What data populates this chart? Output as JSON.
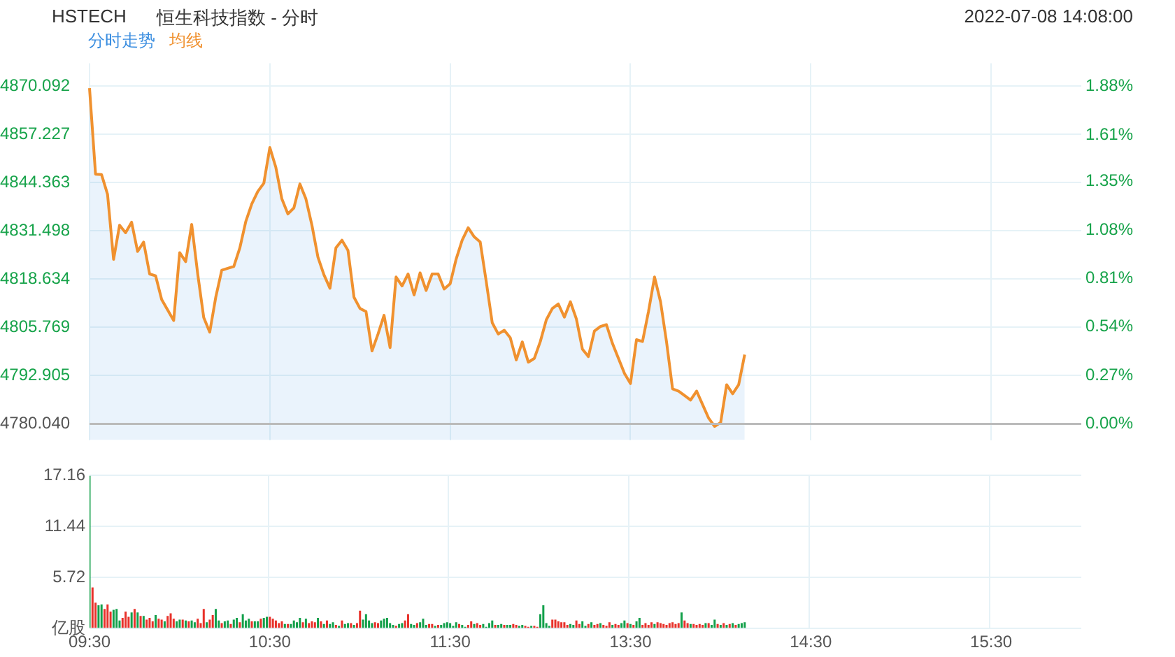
{
  "chart_data": [
    {
      "type": "line",
      "title": "恒生科技指数 - 分时",
      "subtitle": "HSTECH",
      "annotations": [
        "2022-07-08 14:08:00"
      ],
      "categories": [
        null,
        null,
        null,
        null,
        null,
        null,
        null,
        null,
        null,
        null,
        null,
        null,
        null,
        null,
        null,
        null,
        null,
        null,
        null,
        null,
        null,
        null,
        null,
        null,
        null,
        null,
        null,
        null,
        null,
        null,
        null,
        null,
        null,
        null,
        null,
        null,
        null,
        null,
        null,
        null,
        null,
        null,
        null,
        null,
        null,
        null,
        null,
        null,
        null,
        null,
        null,
        null,
        null,
        null,
        null,
        null,
        null,
        null,
        null,
        null,
        null,
        null,
        null,
        null,
        null,
        null,
        null,
        null,
        null,
        null,
        null,
        null,
        null,
        null,
        null,
        null,
        null,
        null,
        null,
        null,
        null,
        null,
        null,
        null,
        null,
        null,
        null,
        null,
        null,
        null,
        null,
        null,
        null,
        null,
        null,
        null,
        null,
        null,
        null,
        null,
        null,
        null,
        null,
        null,
        null,
        null,
        null,
        null,
        null,
        null,
        null,
        null,
        null,
        null,
        null,
        null,
        null,
        null,
        null,
        null,
        null,
        null,
        null,
        null,
        null,
        null,
        null,
        null,
        null,
        null,
        null,
        null,
        null,
        null,
        null,
        null,
        null,
        null,
        null,
        null,
        null,
        null,
        null,
        null,
        null,
        null,
        null,
        null,
        null,
        null,
        null,
        null,
        null,
        null,
        null,
        null,
        null,
        null,
        null,
        null,
        null,
        null,
        null,
        null,
        null,
        null
      ],
      "series": [
        {
          "name": "分时走势",
          "type": "area",
          "color": "#3d8fe0",
          "values": [
            4869.5,
            4846.6,
            4846.5,
            4841.2,
            4823.9,
            4833.0,
            4831.0,
            4833.8,
            4826.0,
            4828.5,
            4820.0,
            4819.5,
            4813.2,
            4810.4,
            4807.6,
            4825.7,
            4823.3,
            4833.2,
            4820.0,
            4808.4,
            4804.5,
            4813.8,
            4821.0,
            4821.5,
            4822.0,
            4826.9,
            4834.0,
            4838.7,
            4842.0,
            4844.2,
            4853.7,
            4848.4,
            4840.0,
            4836.0,
            4837.6,
            4844.0,
            4840.0,
            4833.0,
            4824.5,
            4819.8,
            4816.2,
            4827.0,
            4829.0,
            4826.3,
            4813.8,
            4810.8,
            4810.0,
            4799.5,
            4804.0,
            4809.0,
            4800.4,
            4819.2,
            4816.8,
            4820.0,
            4814.4,
            4820.3,
            4815.6,
            4820.0,
            4820.0,
            4816.0,
            4817.4,
            4824.0,
            4829.0,
            4832.3,
            4829.9,
            4828.5,
            4818.0,
            4807.0,
            4804.0,
            4805.0,
            4803.0,
            4797.1,
            4801.9,
            4796.5,
            4797.5,
            4802.0,
            4807.8,
            4810.8,
            4812.0,
            4808.5,
            4812.6,
            4808.0,
            4800.0,
            4798.0,
            4804.8,
            4806.0,
            4806.5,
            4801.5,
            4797.5,
            4793.5,
            4790.8,
            4802.5,
            4802.0,
            4810.0,
            4819.2,
            4812.6,
            4801.9,
            4789.4,
            4788.8,
            4787.6,
            4786.4,
            4788.8,
            4785.2,
            4781.6,
            4779.4,
            4780.4,
            4790.5,
            4788.1,
            4790.5,
            4798.5,
            null,
            null,
            null,
            null,
            null,
            null,
            null,
            null,
            null,
            null,
            null,
            null,
            null,
            null,
            null,
            null,
            null,
            null,
            null,
            null,
            null,
            null,
            null,
            null,
            null,
            null,
            null,
            null,
            null,
            null,
            null,
            null,
            null,
            null,
            null,
            null,
            null,
            null,
            null,
            null,
            null,
            null,
            null,
            null,
            null,
            null,
            null,
            null,
            null,
            null,
            null,
            null,
            null,
            null,
            null,
            null
          ]
        },
        {
          "name": "均线",
          "type": "line",
          "color": "#f0912f",
          "values": [
            4869.5,
            4846.6,
            4846.5,
            4841.2,
            4823.9,
            4833.0,
            4831.0,
            4833.8,
            4826.0,
            4828.5,
            4820.0,
            4819.5,
            4813.2,
            4810.4,
            4807.6,
            4825.7,
            4823.3,
            4833.2,
            4820.0,
            4808.4,
            4804.5,
            4813.8,
            4821.0,
            4821.5,
            4822.0,
            4826.9,
            4834.0,
            4838.7,
            4842.0,
            4844.2,
            4853.7,
            4848.4,
            4840.0,
            4836.0,
            4837.6,
            4844.0,
            4840.0,
            4833.0,
            4824.5,
            4819.8,
            4816.2,
            4827.0,
            4829.0,
            4826.3,
            4813.8,
            4810.8,
            4810.0,
            4799.5,
            4804.0,
            4809.0,
            4800.4,
            4819.2,
            4816.8,
            4820.0,
            4814.4,
            4820.3,
            4815.6,
            4820.0,
            4820.0,
            4816.0,
            4817.4,
            4824.0,
            4829.0,
            4832.3,
            4829.9,
            4828.5,
            4818.0,
            4807.0,
            4804.0,
            4805.0,
            4803.0,
            4797.1,
            4801.9,
            4796.5,
            4797.5,
            4802.0,
            4807.8,
            4810.8,
            4812.0,
            4808.5,
            4812.6,
            4808.0,
            4800.0,
            4798.0,
            4804.8,
            4806.0,
            4806.5,
            4801.5,
            4797.5,
            4793.5,
            4790.8,
            4802.5,
            4802.0,
            4810.0,
            4819.2,
            4812.6,
            4801.9,
            4789.4,
            4788.8,
            4787.6,
            4786.4,
            4788.8,
            4785.2,
            4781.6,
            4779.4,
            4780.4,
            4790.5,
            4788.1,
            4790.5,
            4798.5,
            null,
            null,
            null,
            null,
            null,
            null,
            null,
            null,
            null,
            null,
            null,
            null,
            null,
            null,
            null,
            null,
            null,
            null,
            null,
            null,
            null,
            null,
            null,
            null,
            null,
            null,
            null,
            null,
            null,
            null,
            null,
            null,
            null,
            null,
            null,
            null,
            null,
            null,
            null,
            null,
            null,
            null,
            null,
            null,
            null,
            null,
            null,
            null,
            null,
            null,
            null,
            null,
            null,
            null,
            null,
            null
          ]
        }
      ],
      "ylim": [
        4775.75,
        4876.17
      ],
      "yticks": [
        {
          "value": 4780.04,
          "label": "4780.040"
        },
        {
          "value": 4792.905,
          "label": "4792.905"
        },
        {
          "value": 4805.769,
          "label": "4805.769"
        },
        {
          "value": 4818.634,
          "label": "4818.634"
        },
        {
          "value": 4831.498,
          "label": "4831.498"
        },
        {
          "value": 4844.363,
          "label": "4844.363"
        },
        {
          "value": 4857.227,
          "label": "4857.227"
        },
        {
          "value": 4870.092,
          "label": "4870.092"
        }
      ],
      "y2lim": [
        -0.09,
        2.01
      ],
      "y2ticks": [
        {
          "value": 0,
          "label": "0.00%"
        },
        {
          "value": 0.27,
          "label": "0.27%"
        },
        {
          "value": 0.54,
          "label": "0.54%"
        },
        {
          "value": 0.81,
          "label": "0.81%"
        },
        {
          "value": 1.08,
          "label": "1.08%"
        },
        {
          "value": 1.35,
          "label": "1.35%"
        },
        {
          "value": 1.61,
          "label": "1.61%"
        },
        {
          "value": 1.88,
          "label": "1.88%"
        }
      ],
      "ref_lines": [
        {
          "axis": "y",
          "value": 4780.04,
          "color": "#bbbbbb"
        }
      ],
      "grid": true,
      "legend": "top left",
      "tick_labels": "y"
    },
    {
      "type": "bar",
      "categories": [
        "09:30",
        null,
        null,
        null,
        null,
        null,
        null,
        null,
        null,
        null,
        null,
        null,
        null,
        null,
        null,
        null,
        null,
        null,
        null,
        null,
        null,
        null,
        null,
        null,
        null,
        null,
        null,
        null,
        null,
        null,
        null,
        null,
        null,
        null,
        null,
        null,
        null,
        null,
        null,
        null,
        null,
        null,
        null,
        null,
        null,
        null,
        null,
        null,
        null,
        null,
        null,
        null,
        null,
        null,
        null,
        null,
        null,
        null,
        null,
        null,
        "10:30",
        null,
        null,
        null,
        null,
        null,
        null,
        null,
        null,
        null,
        null,
        null,
        null,
        null,
        null,
        null,
        null,
        null,
        null,
        null,
        null,
        null,
        null,
        null,
        null,
        null,
        null,
        null,
        null,
        null,
        null,
        null,
        null,
        null,
        null,
        null,
        null,
        null,
        null,
        null,
        null,
        null,
        null,
        null,
        null,
        null,
        null,
        null,
        null,
        null,
        null,
        null,
        null,
        null,
        null,
        null,
        null,
        null,
        null,
        null,
        "11:30",
        null,
        null,
        null,
        null,
        null,
        null,
        null,
        null,
        null,
        null,
        null,
        null,
        null,
        null,
        null,
        null,
        null,
        null,
        null,
        null,
        null,
        null,
        null,
        null,
        null,
        null,
        null,
        null,
        null,
        null,
        null,
        null,
        null,
        null,
        null,
        null,
        null,
        null,
        null,
        null,
        null,
        null,
        null,
        null,
        null,
        null,
        null,
        null,
        null,
        null,
        null,
        null,
        null,
        null,
        null,
        null,
        null,
        null,
        null,
        "13:30",
        null,
        null,
        null,
        null,
        null,
        null,
        null,
        null,
        null,
        null,
        null,
        null,
        null,
        null,
        null,
        null,
        null,
        null,
        null,
        null,
        null,
        null,
        null,
        null,
        null,
        null,
        null,
        null,
        null,
        null,
        null,
        null,
        null,
        null,
        null,
        null,
        null,
        null,
        null,
        null,
        null,
        null,
        null,
        null,
        null,
        null,
        null,
        null,
        null,
        null,
        null,
        null,
        null,
        null,
        null,
        null,
        null,
        null,
        null,
        "14:30",
        null,
        null,
        null,
        null,
        null,
        null,
        null,
        null,
        null,
        null,
        null,
        null,
        null,
        null,
        null,
        null,
        null,
        null,
        null,
        null,
        null,
        null,
        null,
        null,
        null,
        null,
        null,
        null,
        null,
        null,
        null,
        null,
        null,
        null,
        null,
        null,
        null,
        null,
        null,
        null,
        null,
        null,
        null,
        null,
        null,
        null,
        null,
        null,
        null,
        null,
        null,
        null,
        null,
        null,
        null,
        null,
        null,
        null,
        null,
        "15:30",
        null,
        null,
        null,
        null,
        null,
        null,
        null,
        null,
        null,
        null,
        null,
        null,
        null,
        null,
        null,
        null,
        null,
        null,
        null,
        null,
        null,
        null,
        null,
        null,
        null,
        null,
        null,
        null,
        null,
        null
      ],
      "values": [
        17.16,
        4.6,
        2.9,
        2.6,
        2.7,
        2.2,
        2.7,
        1.9,
        2.1,
        2.2,
        0.9,
        1.2,
        1.9,
        1.3,
        1.8,
        2.2,
        1.8,
        1.4,
        1.4,
        1.0,
        1.2,
        0.8,
        1.5,
        1.1,
        1.0,
        0.8,
        1.4,
        1.7,
        1.1,
        0.8,
        1.0,
        1.0,
        0.9,
        0.8,
        0.9,
        0.7,
        1.1,
        0.6,
        2.2,
        0.7,
        1.0,
        1.5,
        2.2,
        0.9,
        0.6,
        0.8,
        0.9,
        0.5,
        1.0,
        1.2,
        0.7,
        1.6,
        0.9,
        1.1,
        0.8,
        0.8,
        0.8,
        1.1,
        1.2,
        1.3,
        1.3,
        1.1,
        0.9,
        0.6,
        0.8,
        0.5,
        0.5,
        0.5,
        0.9,
        0.7,
        1.2,
        0.7,
        1.1,
        0.6,
        0.8,
        0.7,
        1.2,
        0.8,
        0.5,
        0.9,
        0.5,
        0.7,
        0.4,
        0.3,
        0.9,
        0.5,
        0.6,
        0.6,
        0.4,
        0.6,
        2.0,
        1.0,
        1.6,
        0.9,
        0.6,
        0.7,
        0.6,
        0.9,
        1.1,
        1.2,
        0.6,
        0.4,
        0.3,
        0.5,
        0.6,
        0.9,
        1.6,
        0.5,
        0.4,
        0.6,
        0.7,
        1.1,
        0.4,
        0.5,
        0.5,
        0.3,
        0.4,
        0.4,
        0.6,
        0.7,
        0.6,
        0.3,
        0.7,
        0.5,
        0.4,
        0.2,
        0.4,
        0.8,
        0.5,
        0.6,
        0.4,
        0.5,
        0.2,
        0.6,
        0.9,
        0.4,
        0.4,
        0.5,
        0.4,
        0.4,
        0.4,
        0.5,
        0.4,
        0.3,
        0.4,
        0.3,
        0.2,
        0.3,
        0.3,
        0.2,
        1.6,
        2.6,
        0.6,
        0.3,
        1.0,
        1.0,
        0.8,
        0.7,
        0.7,
        0.4,
        0.5,
        0.4,
        0.9,
        0.5,
        0.8,
        0.3,
        0.5,
        0.7,
        0.4,
        0.5,
        0.6,
        0.4,
        0.3,
        0.7,
        0.4,
        0.5,
        0.4,
        0.6,
        0.9,
        0.6,
        0.5,
        0.4,
        0.8,
        1.2,
        0.4,
        0.6,
        0.4,
        0.7,
        0.5,
        0.7,
        0.6,
        0.5,
        0.4,
        0.6,
        0.7,
        0.5,
        0.6,
        1.8,
        0.9,
        0.6,
        0.5,
        0.5,
        0.4,
        0.5,
        0.4,
        0.6,
        0.6,
        0.4,
        1.0,
        0.5,
        0.4,
        0.6,
        0.4,
        0.5,
        0.6,
        0.4,
        0.5,
        0.6,
        0.7,
        null,
        null,
        null,
        null,
        null,
        null,
        null,
        null,
        null,
        null,
        null,
        null,
        null,
        null,
        null,
        null,
        null,
        null,
        null,
        null,
        null,
        null,
        null,
        null,
        null,
        null,
        null,
        null,
        null,
        null,
        null,
        null,
        null,
        null,
        null,
        null,
        null,
        null,
        null,
        null,
        null,
        null,
        null,
        null,
        null,
        null,
        null,
        null,
        null,
        null,
        null,
        null,
        null,
        null,
        null,
        null,
        null,
        null,
        null,
        null,
        null,
        null,
        null,
        null,
        null,
        null,
        null,
        null,
        null,
        null,
        null,
        null,
        null,
        null,
        null,
        null,
        null,
        null,
        null,
        null,
        null,
        null,
        null,
        null,
        null,
        null,
        null,
        null,
        null,
        null,
        null,
        null,
        null,
        null,
        null,
        null,
        null,
        null,
        null,
        null,
        null,
        null,
        null,
        null,
        null,
        null,
        null,
        null,
        null,
        null,
        null,
        null
      ],
      "colors": [
        "#13a04b",
        "#e8312a",
        "#e8312a",
        "#13a04b",
        "#13a04b",
        "#e8312a",
        "#e8312a",
        "#e8312a",
        "#13a04b",
        "#13a04b",
        "#13a04b",
        "#e8312a",
        "#e8312a",
        "#e8312a",
        "#13a04b",
        "#e8312a",
        "#13a04b",
        "#e8312a",
        "#13a04b",
        "#e8312a",
        "#e8312a",
        "#e8312a",
        "#13a04b",
        "#e8312a",
        "#e8312a",
        "#13a04b",
        "#e8312a",
        "#e8312a",
        "#e8312a",
        "#13a04b",
        "#13a04b",
        "#e8312a",
        "#13a04b",
        "#e8312a",
        "#13a04b",
        "#13a04b",
        "#e8312a",
        "#e8312a",
        "#e8312a",
        "#13a04b",
        "#e8312a",
        "#e8312a",
        "#13a04b",
        "#13a04b",
        "#e8312a",
        "#13a04b",
        "#13a04b",
        "#e8312a",
        "#13a04b",
        "#13a04b",
        "#e8312a",
        "#13a04b",
        "#13a04b",
        "#13a04b",
        "#e8312a",
        "#13a04b",
        "#13a04b",
        "#e8312a",
        "#13a04b",
        "#13a04b",
        "#e8312a",
        "#e8312a",
        "#e8312a",
        "#e8312a",
        "#e8312a",
        "#13a04b",
        "#e8312a",
        "#13a04b",
        "#13a04b",
        "#13a04b",
        "#13a04b",
        "#e8312a",
        "#13a04b",
        "#e8312a",
        "#e8312a",
        "#e8312a",
        "#13a04b",
        "#e8312a",
        "#13a04b",
        "#e8312a",
        "#13a04b",
        "#13a04b",
        "#e8312a",
        "#13a04b",
        "#e8312a",
        "#13a04b",
        "#13a04b",
        "#e8312a",
        "#13a04b",
        "#e8312a",
        "#e8312a",
        "#13a04b",
        "#13a04b",
        "#13a04b",
        "#13a04b",
        "#e8312a",
        "#e8312a",
        "#13a04b",
        "#13a04b",
        "#13a04b",
        "#13a04b",
        "#13a04b",
        "#e8312a",
        "#13a04b",
        "#13a04b",
        "#e8312a",
        "#e8312a",
        "#13a04b",
        "#13a04b",
        "#e8312a",
        "#13a04b",
        "#13a04b",
        "#13a04b",
        "#e8312a",
        "#e8312a",
        "#13a04b",
        "#e8312a",
        "#13a04b",
        "#13a04b",
        "#13a04b",
        "#13a04b",
        "#13a04b",
        "#13a04b",
        "#e8312a",
        "#13a04b",
        "#13a04b",
        "#e8312a",
        "#e8312a",
        "#13a04b",
        "#e8312a",
        "#e8312a",
        "#13a04b",
        "#13a04b",
        "#13a04b",
        "#13a04b",
        "#e8312a",
        "#13a04b",
        "#13a04b",
        "#e8312a",
        "#13a04b",
        "#13a04b",
        "#e8312a",
        "#e8312a",
        "#13a04b",
        "#13a04b",
        "#e8312a",
        "#e8312a",
        "#13a04b",
        "#e8312a",
        "#e8312a",
        "#13a04b",
        "#13a04b",
        "#13a04b",
        "#13a04b",
        "#e8312a",
        "#e8312a",
        "#e8312a",
        "#e8312a",
        "#e8312a",
        "#e8312a",
        "#13a04b",
        "#13a04b",
        "#e8312a",
        "#e8312a",
        "#13a04b",
        "#13a04b",
        "#e8312a",
        "#13a04b",
        "#e8312a",
        "#e8312a",
        "#13a04b",
        "#e8312a",
        "#e8312a",
        "#e8312a",
        "#13a04b",
        "#e8312a",
        "#e8312a",
        "#13a04b",
        "#13a04b",
        "#e8312a",
        "#13a04b",
        "#e8312a",
        "#13a04b",
        "#13a04b",
        "#e8312a",
        "#e8312a",
        "#e8312a",
        "#e8312a",
        "#13a04b",
        "#e8312a",
        "#e8312a",
        "#e8312a",
        "#e8312a",
        "#e8312a",
        "#e8312a",
        "#e8312a",
        "#e8312a",
        "#13a04b",
        "#e8312a",
        "#e8312a",
        "#13a04b",
        "#e8312a",
        "#e8312a",
        "#e8312a",
        "#e8312a",
        "#13a04b",
        "#e8312a",
        "#13a04b",
        "#13a04b",
        "#e8312a",
        "#13a04b",
        "#e8312a",
        "#13a04b",
        "#e8312a",
        "#13a04b",
        "#e8312a",
        "#13a04b",
        "#13a04b",
        "#13a04b",
        null,
        null,
        null,
        null,
        null,
        null,
        null,
        null,
        null,
        null,
        null,
        null,
        null,
        null,
        null,
        null,
        null,
        null,
        null,
        null,
        null,
        null,
        null,
        null,
        null,
        null,
        null,
        null,
        null,
        null,
        null,
        null,
        null,
        null,
        null,
        null,
        null,
        null,
        null,
        null,
        null,
        null,
        null,
        null,
        null,
        null,
        null,
        null,
        null,
        null,
        null,
        null,
        null,
        null,
        null,
        null,
        null,
        null,
        null,
        null,
        null,
        null,
        null,
        null,
        null,
        null,
        null,
        null,
        null,
        null,
        null,
        null,
        null,
        null,
        null,
        null,
        null,
        null,
        null,
        null,
        null,
        null,
        null,
        null,
        null,
        null,
        null,
        null,
        null,
        null,
        null,
        null,
        null,
        null,
        null,
        null,
        null,
        null,
        null,
        null,
        null,
        null,
        null,
        null,
        null,
        null,
        null,
        null,
        null,
        null,
        null,
        null
      ],
      "ylim": [
        0,
        17.16
      ],
      "yticks": [
        {
          "value": 0,
          "label": "亿股"
        },
        5.72,
        11.44,
        17.16
      ],
      "grid": true
    }
  ]
}
